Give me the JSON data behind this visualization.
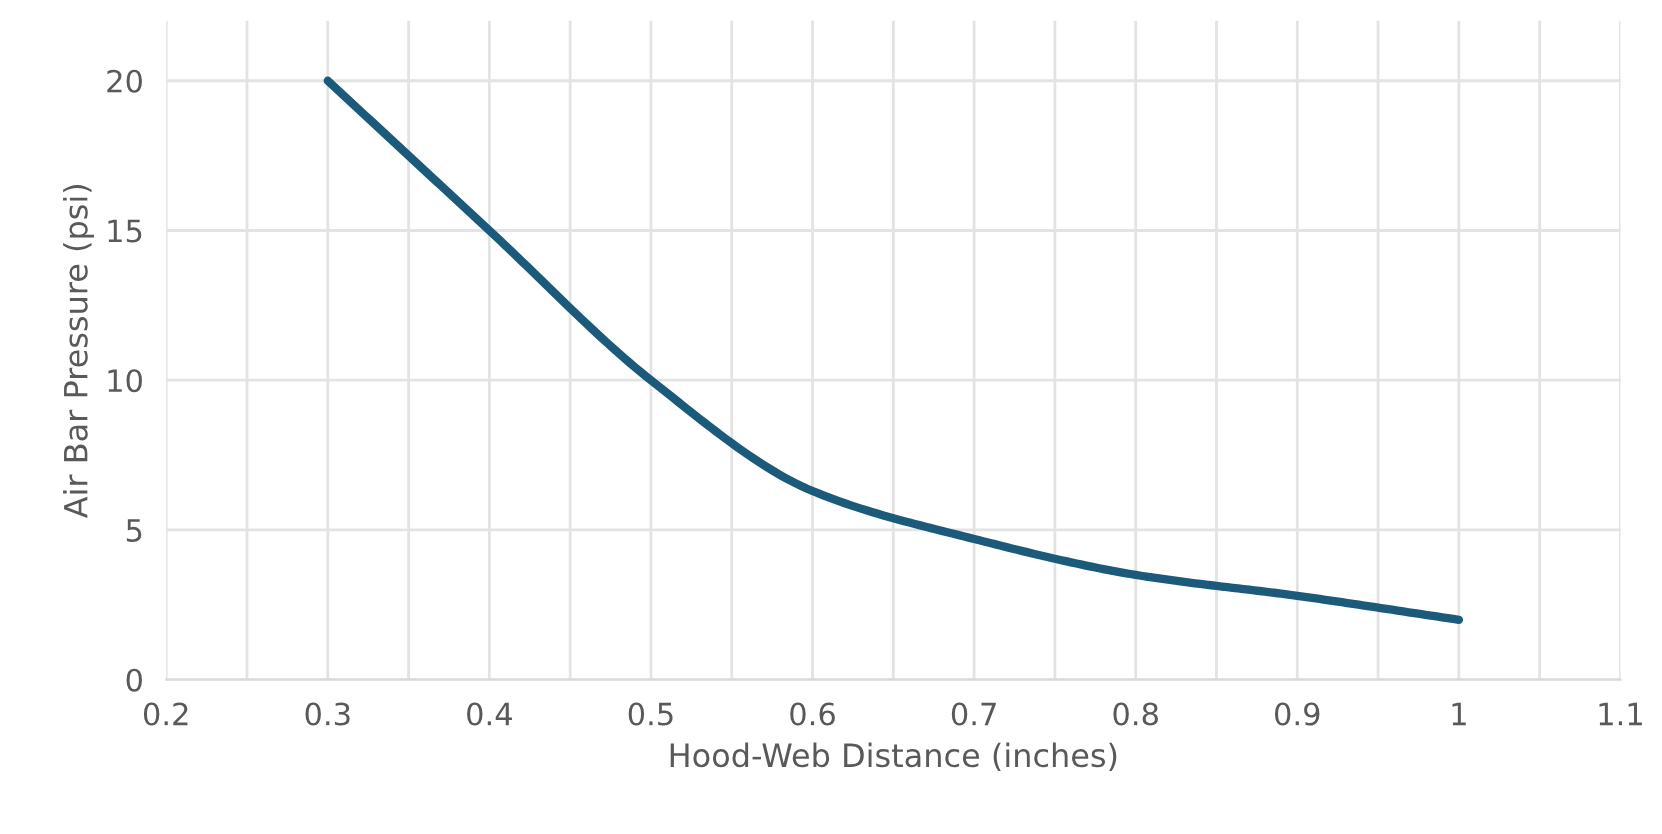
{
  "chart_data": {
    "type": "line",
    "xlabel": "Hood-Web Distance (inches)",
    "ylabel": "Air Bar Pressure (psi)",
    "x": [
      0.3,
      0.4,
      0.5,
      0.6,
      0.7,
      0.8,
      0.9,
      1.0
    ],
    "series": [
      {
        "color": "#1b5a7a",
        "values": [
          20,
          15,
          10,
          6.3,
          4.7,
          3.5,
          2.8,
          2
        ]
      }
    ],
    "xlim": [
      0.2,
      1.1
    ],
    "xticks": [
      0.2,
      {
        "value": 0.25,
        "label": null
      },
      0.3,
      {
        "value": 0.35,
        "label": null
      },
      0.4,
      {
        "value": 0.45,
        "label": null
      },
      0.5,
      {
        "value": 0.55,
        "label": null
      },
      0.6,
      {
        "value": 0.65,
        "label": null
      },
      0.7,
      {
        "value": 0.75,
        "label": null
      },
      0.8,
      {
        "value": 0.85,
        "label": null
      },
      0.9,
      {
        "value": 0.95,
        "label": null
      },
      1,
      {
        "value": 1.05,
        "label": null
      },
      1.1
    ],
    "ylim": [
      0,
      22
    ],
    "yticks": [
      0,
      5,
      10,
      15,
      20
    ],
    "grid": true,
    "marker": "none",
    "line_style": "solid"
  }
}
